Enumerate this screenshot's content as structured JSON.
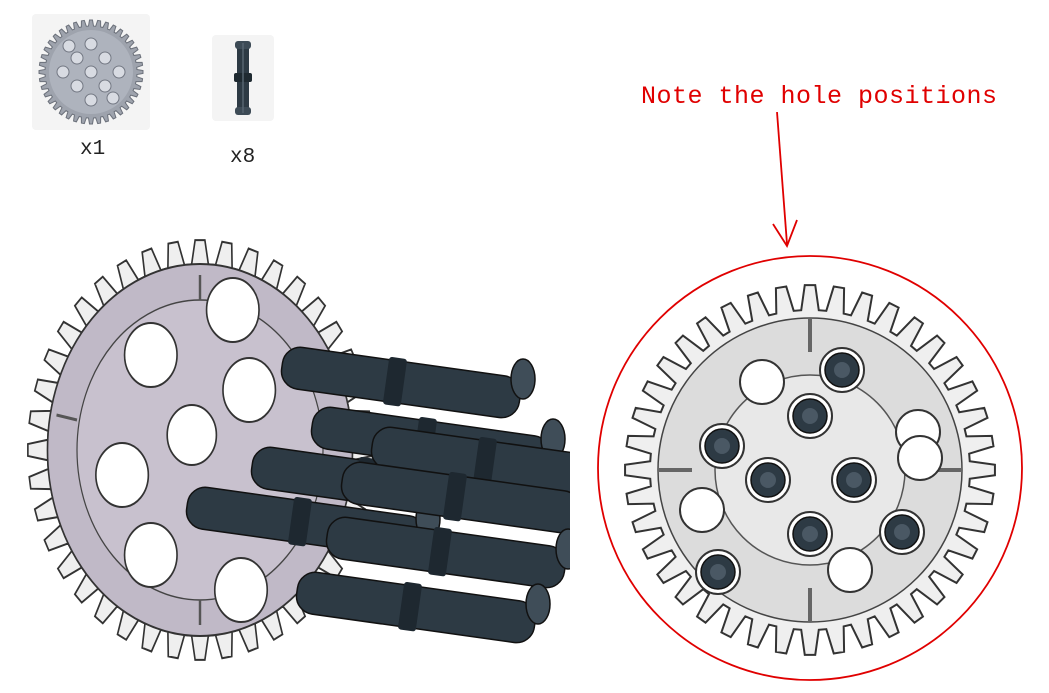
{
  "parts": [
    {
      "name": "gear",
      "icon": "gear-40-tooth-icon",
      "qty": "x1"
    },
    {
      "name": "pin",
      "icon": "connector-pin-icon",
      "qty": "x8"
    }
  ],
  "note": {
    "text": "Note the hole positions",
    "color": "#e00000"
  },
  "colors": {
    "gear_light": "#eeeeee",
    "gear_dark_face": "#b8b1bf",
    "pin_color": "#2d3a44",
    "outline": "#333333"
  }
}
